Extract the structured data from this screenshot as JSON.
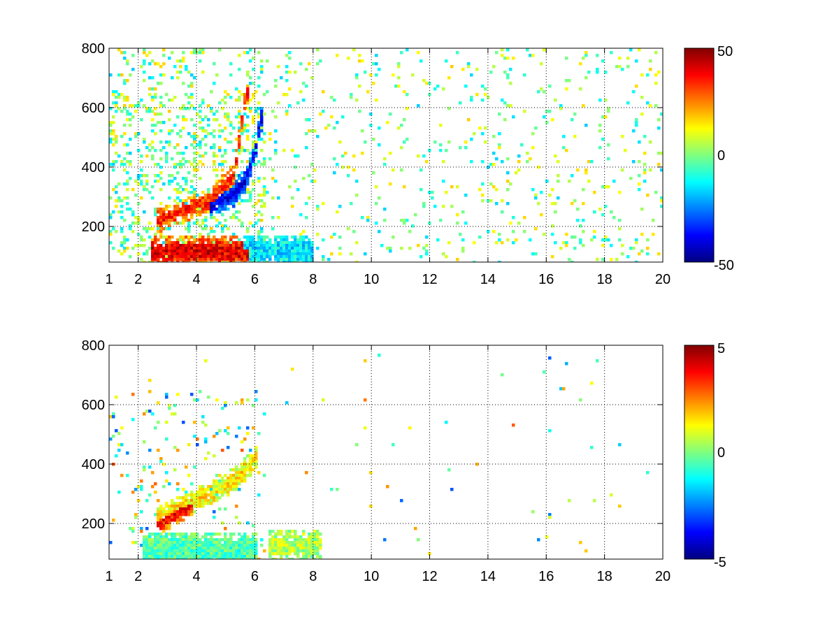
{
  "chart_data": [
    {
      "type": "heatmap",
      "title": "",
      "xlabel": "",
      "ylabel": "",
      "xlim": [
        1,
        20
      ],
      "ylim": [
        80,
        800
      ],
      "x_ticks": [
        "1",
        "2",
        "4",
        "6",
        "8",
        "10",
        "12",
        "14",
        "16",
        "18",
        "20"
      ],
      "y_ticks": [
        "200",
        "400",
        "600",
        "800"
      ],
      "grid": true,
      "colormap": "jet",
      "colorbar": {
        "range": [
          -50,
          50
        ],
        "ticks": [
          "50",
          "0",
          "-50"
        ]
      },
      "features": [
        {
          "shape": "curve",
          "x": [
            2.7,
            3.5,
            4.5,
            5.3,
            5.7
          ],
          "y": [
            220,
            250,
            285,
            380,
            650
          ],
          "value": 35
        },
        {
          "shape": "curve",
          "x": [
            4.5,
            5.2,
            5.7,
            6.0,
            6.2
          ],
          "y": [
            270,
            300,
            360,
            440,
            560
          ],
          "value": -40
        },
        {
          "shape": "band",
          "x": [
            2.5,
            5.7
          ],
          "y": [
            105,
            125
          ],
          "value": 40
        },
        {
          "shape": "band",
          "x": [
            5.7,
            8.0
          ],
          "y": [
            105,
            130
          ],
          "value": -15
        }
      ]
    },
    {
      "type": "heatmap",
      "title": "",
      "xlabel": "",
      "ylabel": "",
      "xlim": [
        1,
        20
      ],
      "ylim": [
        80,
        800
      ],
      "x_ticks": [
        "1",
        "2",
        "4",
        "6",
        "8",
        "10",
        "12",
        "14",
        "16",
        "18",
        "20"
      ],
      "y_ticks": [
        "200",
        "400",
        "600",
        "800"
      ],
      "grid": true,
      "colormap": "jet",
      "colorbar": {
        "range": [
          -5,
          5
        ],
        "ticks": [
          "5",
          "0",
          "-5"
        ]
      },
      "features": [
        {
          "shape": "curve",
          "x": [
            2.7,
            3.5,
            4.5,
            5.5,
            6.0
          ],
          "y": [
            220,
            260,
            300,
            360,
            420
          ],
          "value": 1.5
        },
        {
          "shape": "curve",
          "x": [
            2.7,
            3.2,
            3.8
          ],
          "y": [
            200,
            230,
            260
          ],
          "value": 3.8
        },
        {
          "shape": "band",
          "x": [
            2.2,
            6.0
          ],
          "y": [
            90,
            130
          ],
          "value": -0.5
        },
        {
          "shape": "band",
          "x": [
            6.5,
            8.2
          ],
          "y": [
            120,
            135
          ],
          "value": 0.5
        }
      ]
    }
  ]
}
